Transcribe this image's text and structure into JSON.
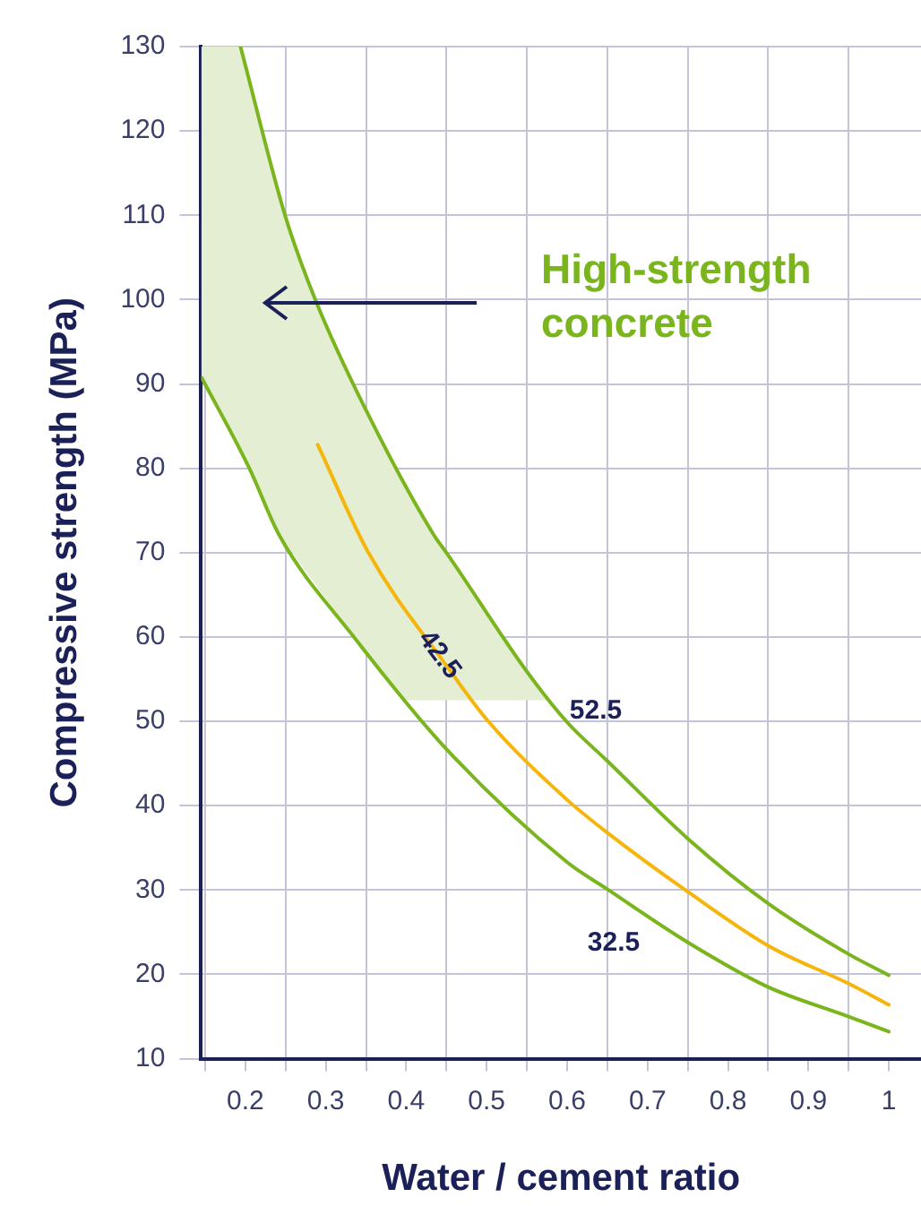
{
  "chart_data": {
    "type": "line",
    "xlabel": "Water / cement ratio",
    "ylabel": "Compressive strength (MPa)",
    "xlim": [
      0.145,
      1.04
    ],
    "ylim": [
      10,
      130
    ],
    "xticks": [
      {
        "value": 0.15,
        "label": null
      },
      0.2,
      {
        "value": 0.25,
        "label": null
      },
      0.3,
      {
        "value": 0.35,
        "label": null
      },
      0.4,
      {
        "value": 0.45,
        "label": null
      },
      0.5,
      {
        "value": 0.55,
        "label": null
      },
      0.6,
      {
        "value": 0.65,
        "label": null
      },
      0.7,
      {
        "value": 0.75,
        "label": null
      },
      0.8,
      {
        "value": 0.85,
        "label": null
      },
      0.9,
      {
        "value": 0.95,
        "label": null
      },
      1.0
    ],
    "yticks": [
      10,
      20,
      30,
      40,
      50,
      60,
      70,
      80,
      90,
      100,
      110,
      120,
      130
    ],
    "grid": true,
    "legend": false,
    "marker": "none",
    "line_style": "solid",
    "series": [
      {
        "name": "52.5",
        "color": "#7ab51d",
        "x": [
          0.194,
          0.25,
          0.287,
          0.35,
          0.435,
          0.45,
          0.55,
          0.6,
          0.65,
          0.75,
          0.85,
          0.95,
          1.0
        ],
        "values": [
          130,
          109.8,
          100,
          86.9,
          72,
          70,
          55.9,
          49.9,
          45.3,
          36.1,
          28.4,
          22.4,
          19.9
        ]
      },
      {
        "name": "42.5",
        "color": "#f5b50a",
        "x": [
          0.29,
          0.353,
          0.45,
          0.502,
          0.6,
          0.65,
          0.75,
          0.85,
          0.95,
          1.0
        ],
        "values": [
          82.8,
          70,
          56.6,
          50,
          40.7,
          36.8,
          29.8,
          23.4,
          18.9,
          16.4
        ]
      },
      {
        "name": "32.5",
        "color": "#7ab51d",
        "x": [
          0.146,
          0.205,
          0.242,
          0.335,
          0.45,
          0.6,
          0.65,
          0.75,
          0.85,
          0.95,
          1.0
        ],
        "values": [
          90.7,
          80,
          72.1,
          60,
          46.7,
          33.3,
          30.1,
          23.8,
          18.5,
          15.0,
          13.2
        ]
      }
    ],
    "bands": [
      {
        "axis": "y",
        "from": 52.5,
        "to": 130,
        "label": "High-strength concrete",
        "color": "#e3eed3"
      }
    ]
  }
}
